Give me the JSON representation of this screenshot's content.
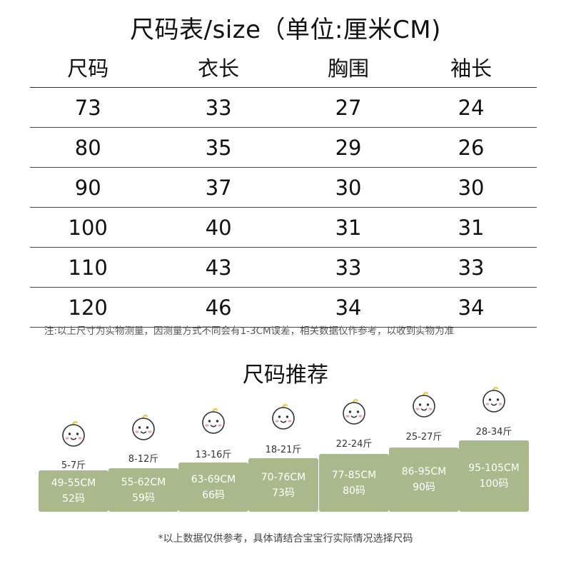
{
  "title": "尺码表/size（单位:厘米CM)",
  "table": {
    "headers": [
      "尺码",
      "衣长",
      "胸围",
      "袖长"
    ],
    "rows": [
      [
        "73",
        "33",
        "27",
        "24"
      ],
      [
        "80",
        "35",
        "29",
        "26"
      ],
      [
        "90",
        "37",
        "30",
        "30"
      ],
      [
        "100",
        "40",
        "31",
        "31"
      ],
      [
        "110",
        "43",
        "33",
        "33"
      ],
      [
        "120",
        "46",
        "34",
        "34"
      ]
    ]
  },
  "note": "注:以上尺寸为实物测量，因测量方式不同会有1-3CM误差，相关数据仅作参考，以收到实物为准",
  "recommend": {
    "title": "尺码推荐",
    "items": [
      {
        "weight": "5-7斤",
        "height": "49-55CM",
        "size": "52码"
      },
      {
        "weight": "8-12斤",
        "height": "55-62CM",
        "size": "59码"
      },
      {
        "weight": "13-16斤",
        "height": "63-69CM",
        "size": "66码"
      },
      {
        "weight": "18-21斤",
        "height": "70-76CM",
        "size": "73码"
      },
      {
        "weight": "22-24斤",
        "height": "77-85CM",
        "size": "80码"
      },
      {
        "weight": "25-27斤",
        "height": "86-95CM",
        "size": "90码"
      },
      {
        "weight": "28-34斤",
        "height": "95-105CM",
        "size": "100码"
      }
    ]
  },
  "footer": "*以上数据仅供参考，具体请结合宝宝行实际情况选择尺码",
  "colors": {
    "card": "#a9b98b",
    "cheek": "#f3a6a6",
    "curl": "#f2c94c"
  },
  "icon": "baby-face-icon"
}
